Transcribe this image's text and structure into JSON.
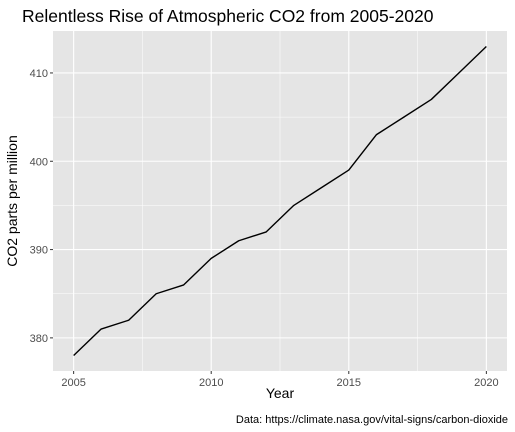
{
  "chart_data": {
    "type": "line",
    "title": "Relentless Rise of Atmospheric CO2 from 2005-2020",
    "xlabel": "Year",
    "ylabel": "CO2 parts per million",
    "caption": "Data: https://climate.nasa.gov/vital-signs/carbon-dioxide",
    "x": [
      2005,
      2006,
      2007,
      2008,
      2009,
      2010,
      2011,
      2012,
      2013,
      2014,
      2015,
      2016,
      2017,
      2018,
      2019,
      2020
    ],
    "y": [
      378,
      381,
      382,
      385,
      386,
      389,
      391,
      392,
      395,
      397,
      399,
      403,
      405,
      407,
      410,
      413
    ],
    "xlim": [
      2004.25,
      2020.75
    ],
    "ylim": [
      376.25,
      414.75
    ],
    "x_ticks": [
      2005,
      2010,
      2015,
      2020
    ],
    "x_minor_ticks": [
      2007.5,
      2012.5,
      2017.5
    ],
    "y_ticks": [
      380,
      390,
      400,
      410
    ],
    "y_minor_ticks": [
      385,
      395,
      405
    ],
    "grid": true,
    "panel_background": "#e5e5e5",
    "grid_color": "#ffffff",
    "line_color": "#000000",
    "legend": "none"
  }
}
